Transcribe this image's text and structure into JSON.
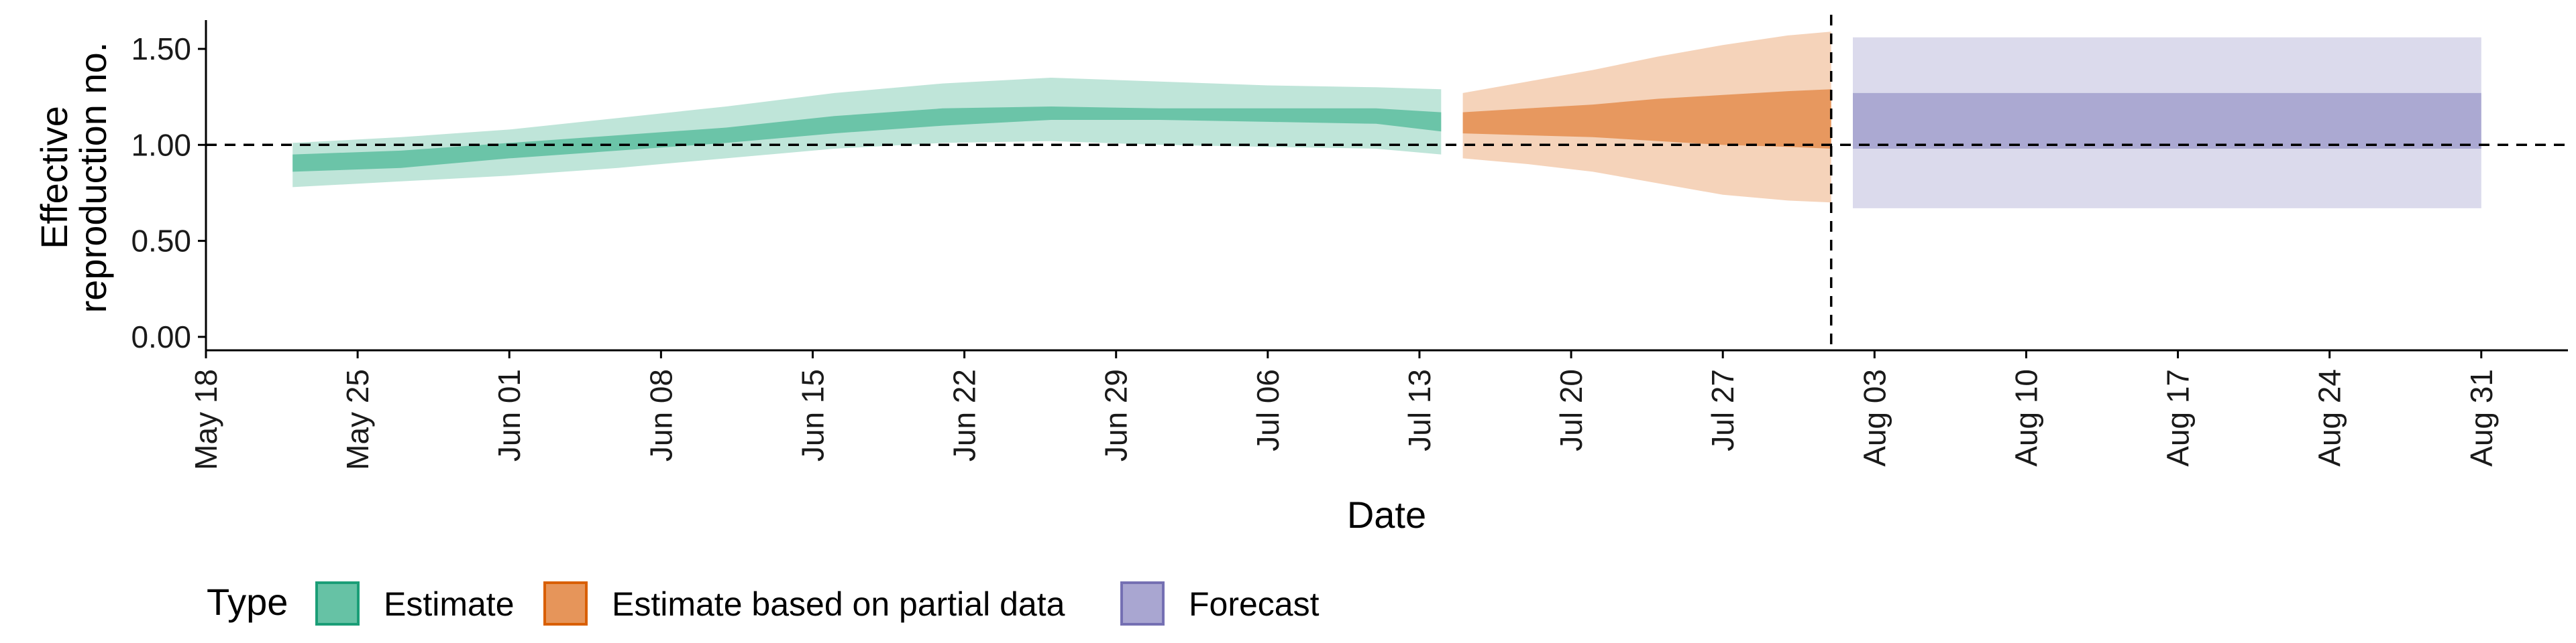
{
  "chart_data": {
    "type": "area",
    "xlabel": "Date",
    "ylabel_lines": [
      "Effective",
      "reproduction no."
    ],
    "x_ticks": [
      "May 18",
      "May 25",
      "Jun 01",
      "Jun 08",
      "Jun 15",
      "Jun 22",
      "Jun 29",
      "Jul 06",
      "Jul 13",
      "Jul 20",
      "Jul 27",
      "Aug 03",
      "Aug 10",
      "Aug 17",
      "Aug 24",
      "Aug 31"
    ],
    "y_ticks": [
      "0.00",
      "0.50",
      "1.00",
      "1.50"
    ],
    "ylim": [
      -0.07,
      1.65
    ],
    "xlim": [
      "2020-05-18",
      "2020-09-04"
    ],
    "reference_line_y": 1.0,
    "reference_line_x": "2020-08-01",
    "grid": false,
    "legend": {
      "title": "Type",
      "position": "bottom-left",
      "items": [
        {
          "label": "Estimate",
          "fill": "#66C2A5",
          "stroke": "#1B9E77"
        },
        {
          "label": "Estimate based on partial data",
          "fill": "#E6955A",
          "stroke": "#D95F02"
        },
        {
          "label": "Forecast",
          "fill": "#A9A6D1",
          "stroke": "#7570B3"
        }
      ]
    },
    "series": [
      {
        "name": "Estimate",
        "color": "#66C2A5",
        "x": [
          "2020-05-22",
          "2020-05-27",
          "2020-06-01",
          "2020-06-06",
          "2020-06-11",
          "2020-06-16",
          "2020-06-21",
          "2020-06-26",
          "2020-07-01",
          "2020-07-06",
          "2020-07-11",
          "2020-07-14"
        ],
        "inner_lower": [
          0.86,
          0.88,
          0.93,
          0.97,
          1.01,
          1.06,
          1.1,
          1.13,
          1.13,
          1.12,
          1.11,
          1.07
        ],
        "inner_upper": [
          0.95,
          0.97,
          1.01,
          1.05,
          1.09,
          1.15,
          1.19,
          1.2,
          1.19,
          1.19,
          1.19,
          1.17
        ],
        "outer_lower": [
          0.78,
          0.81,
          0.84,
          0.88,
          0.93,
          0.98,
          1.01,
          1.02,
          1.0,
          0.99,
          0.98,
          0.95
        ],
        "outer_upper": [
          1.01,
          1.04,
          1.08,
          1.14,
          1.2,
          1.27,
          1.32,
          1.35,
          1.33,
          1.31,
          1.3,
          1.29
        ]
      },
      {
        "name": "Estimate based on partial data",
        "color": "#E6955A",
        "x": [
          "2020-07-15",
          "2020-07-18",
          "2020-07-21",
          "2020-07-24",
          "2020-07-27",
          "2020-07-30",
          "2020-08-01"
        ],
        "inner_lower": [
          1.06,
          1.05,
          1.04,
          1.02,
          1.0,
          0.99,
          0.98
        ],
        "inner_upper": [
          1.17,
          1.19,
          1.21,
          1.24,
          1.26,
          1.28,
          1.29
        ],
        "outer_lower": [
          0.93,
          0.9,
          0.86,
          0.8,
          0.74,
          0.71,
          0.7
        ],
        "outer_upper": [
          1.27,
          1.33,
          1.39,
          1.46,
          1.52,
          1.57,
          1.59
        ]
      },
      {
        "name": "Forecast",
        "color": "#A9A6D1",
        "x": [
          "2020-08-02",
          "2020-08-31"
        ],
        "inner_lower": [
          0.98,
          0.98
        ],
        "inner_upper": [
          1.27,
          1.27
        ],
        "outer_lower": [
          0.67,
          0.67
        ],
        "outer_upper": [
          1.56,
          1.56
        ]
      }
    ]
  }
}
